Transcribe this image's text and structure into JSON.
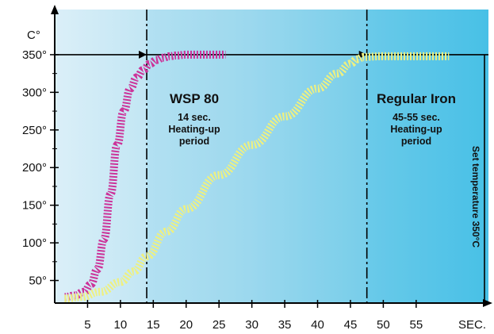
{
  "chart_data": {
    "type": "line",
    "title": "",
    "xlabel": "SEC.",
    "ylabel": "C°",
    "xlim": [
      0,
      66
    ],
    "ylim": [
      20,
      410
    ],
    "x_ticks": [
      5,
      10,
      15,
      20,
      25,
      30,
      35,
      40,
      45,
      50,
      55
    ],
    "y_ticks": [
      50,
      100,
      150,
      200,
      250,
      300,
      350
    ],
    "y_tick_labels": [
      "50°",
      "100°",
      "150°",
      "200°",
      "250°",
      "300°",
      "350°"
    ],
    "grid": false,
    "series": [
      {
        "name": "WSP 80",
        "color": "#cc3399",
        "x": [
          1.5,
          3,
          4.5,
          5.5,
          6.5,
          7.5,
          8.5,
          9.5,
          10.5,
          11.5,
          12.5,
          13.5,
          14.5,
          15.5,
          16.5,
          17.5,
          18.5,
          20,
          22,
          24,
          26
        ],
        "y": [
          28,
          30,
          35,
          45,
          65,
          105,
          165,
          230,
          275,
          305,
          320,
          330,
          338,
          343,
          346,
          348,
          349,
          350,
          350,
          350,
          350
        ]
      },
      {
        "name": "Regular Iron",
        "color": "#eef080",
        "x": [
          1.5,
          4,
          7,
          10,
          12,
          14,
          17,
          20,
          25,
          30,
          35,
          40,
          43,
          45,
          46,
          47,
          50,
          55,
          60
        ],
        "y": [
          26,
          28,
          35,
          48,
          62,
          82,
          115,
          145,
          190,
          230,
          268,
          305,
          325,
          338,
          344,
          347,
          348,
          348,
          348
        ]
      }
    ],
    "reference_lines": {
      "set_temperature": 350,
      "wsp80_heatup_time": 14,
      "regular_iron_heatup_time": 47.5
    },
    "annotations": {
      "wsp80_title": "WSP 80",
      "wsp80_line1": "14 sec.",
      "wsp80_line2": "Heating-up",
      "wsp80_line3": "period",
      "regular_title": "Regular Iron",
      "regular_line1": "45-55 sec.",
      "regular_line2": "Heating-up",
      "regular_line3": "period",
      "set_temp_label": "Set temperature 350°C"
    },
    "colors": {
      "bg_left": "#dbeff8",
      "bg_right": "#4cc2e6",
      "axis": "#000000"
    }
  }
}
